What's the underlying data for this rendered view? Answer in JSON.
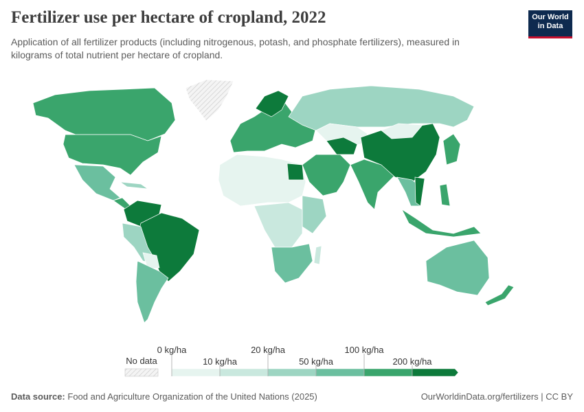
{
  "header": {
    "title": "Fertilizer use per hectare of cropland, 2022",
    "subtitle": [
      "Application of all fertilizer products (including nitrogenous, potash, and phosphate fertilizers), measured in",
      "kilograms of total nutrient per hectare of cropland."
    ],
    "logo": [
      "Our World",
      "in Data"
    ]
  },
  "legend": {
    "no_data": "No data",
    "bins": [
      {
        "value": 0,
        "label": "0 kg/ha"
      },
      {
        "value": 10,
        "label": "10 kg/ha"
      },
      {
        "value": 20,
        "label": "20 kg/ha"
      },
      {
        "value": 50,
        "label": "50 kg/ha"
      },
      {
        "value": 100,
        "label": "100 kg/ha"
      },
      {
        "value": 200,
        "label": "200 kg/ha"
      }
    ],
    "colors": [
      "#e6f4ef",
      "#c9e8de",
      "#9dd5c2",
      "#6bbf9f",
      "#3aa56c",
      "#0d7a3b"
    ]
  },
  "footer": {
    "source_label": "Data source:",
    "source": "Food and Agriculture Organization of the United Nations (2025)",
    "link": "OurWorldinData.org/fertilizers | CC BY"
  }
}
